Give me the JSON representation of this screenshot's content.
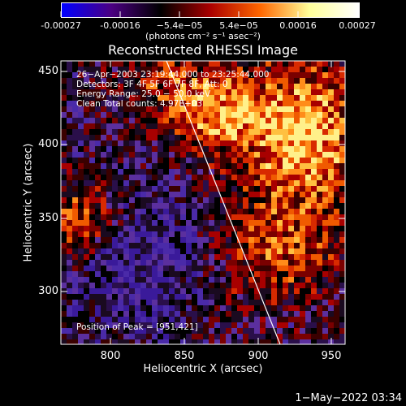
{
  "colorbar": {
    "ticks": [
      "-0.00027",
      "-0.00016",
      "−5.4e−05",
      "5.4e−05",
      "0.00016",
      "0.00027"
    ],
    "unit_label": "(photons cm⁻² s⁻¹ asec⁻²)",
    "colors": [
      "#0000ff",
      "#4b0082",
      "#000000",
      "#aa0000",
      "#ff6600",
      "#ffff99",
      "#ffffff"
    ]
  },
  "title": "Reconstructed RHESSI Image",
  "info": {
    "time_range": "26−Apr−2003 23:19:44.000 to 23:25:44.000",
    "detectors": "Detectors: 3F 4F 5F 6F 7F 8F, Att: 0",
    "energy": "Energy Range: 25.0 − 50.0 keV",
    "clean": "Clean    Total counts: 4.97E+03",
    "peak": "Position of Peak = [951,421]"
  },
  "axes": {
    "xlabel": "Heliocentric X (arcsec)",
    "ylabel": "Heliocentric Y (arcsec)",
    "xticks": [
      "800",
      "850",
      "900",
      "950"
    ],
    "yticks": [
      "450",
      "400",
      "350",
      "300"
    ],
    "xlim": [
      766,
      960
    ],
    "ylim": [
      262,
      459
    ]
  },
  "footer": {
    "date": "1−May−2022 03:34"
  }
}
